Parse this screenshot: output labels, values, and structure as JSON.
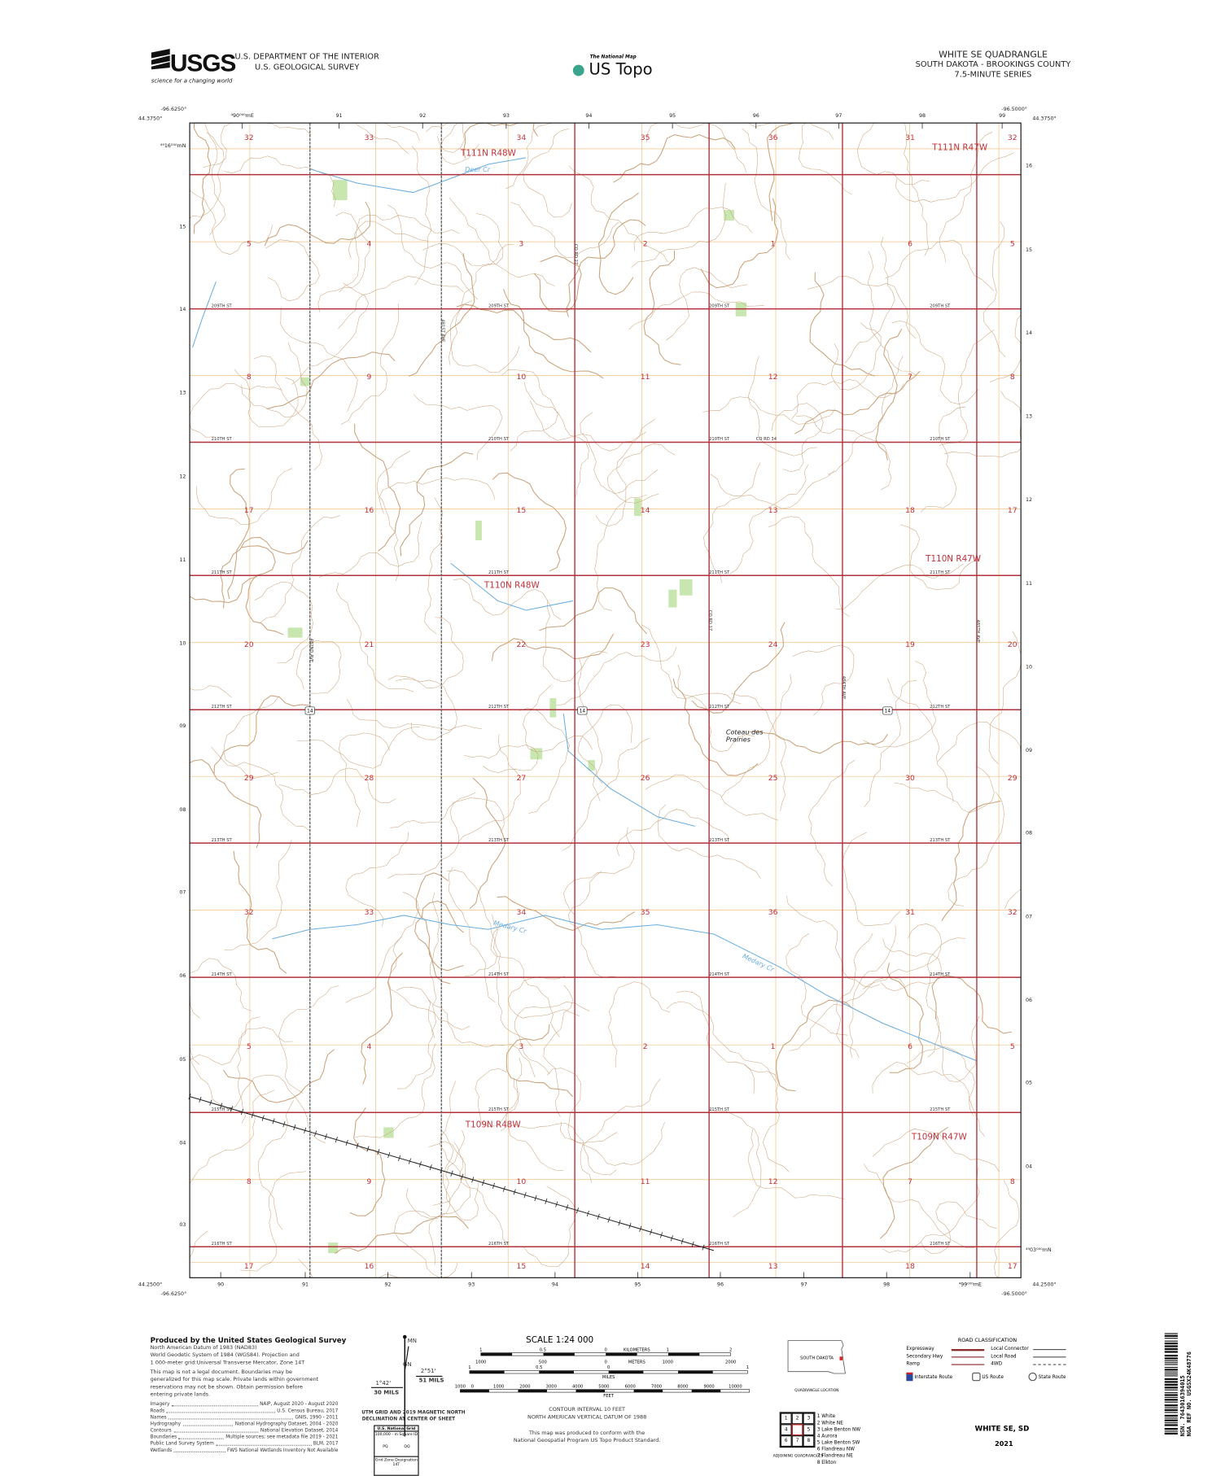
{
  "header": {
    "agency_logo": "USGS",
    "agency_tagline": "science for a changing world",
    "department": "U.S. DEPARTMENT OF THE INTERIOR",
    "survey": "U.S. GEOLOGICAL SURVEY",
    "national_map": "The National Map",
    "product": "US Topo",
    "quad_title": "WHITE SE QUADRANGLE",
    "state_county": "SOUTH DAKOTA - BROOKINGS COUNTY",
    "series": "7.5-MINUTE SERIES"
  },
  "collar": {
    "nw_lon": "-96.6250°",
    "nw_lat": "44.3750°",
    "ne_lon": "-96.5000°",
    "ne_lat": "44.3750°",
    "sw_lon": "-96.6250°",
    "sw_lat": "44.2500°",
    "se_lon": "-96.5000°",
    "se_lat": "44.2500°",
    "top_eastings": [
      "⁴90⁰⁰⁰mE",
      "91",
      "92",
      "93",
      "94",
      "95",
      "96",
      "97",
      "98",
      "99"
    ],
    "bottom_eastings": [
      "90",
      "91",
      "92",
      "93",
      "94",
      "95",
      "96",
      "97",
      "98",
      "⁴99⁰⁰⁰mE"
    ],
    "left_northings": [
      "⁴⁹16⁰⁰⁰mN",
      "15",
      "14",
      "13",
      "12",
      "11",
      "10",
      "09",
      "08",
      "07",
      "06",
      "05",
      "04",
      "03"
    ],
    "right_northings": [
      "16",
      "15",
      "14",
      "13",
      "12",
      "11",
      "10",
      "09",
      "08",
      "07",
      "06",
      "05",
      "04",
      "⁴⁹03⁰⁰⁰mN"
    ]
  },
  "map": {
    "colors": {
      "section_line": "#b0323a",
      "road": "#9a3a3a",
      "contour": "#c9a27a",
      "water": "#6aaee0",
      "grid": "#f0c080",
      "vegetation": "#c8e6b0"
    },
    "section_numbers": [
      [
        "32",
        "33",
        "34",
        "35",
        "36",
        "31",
        "32"
      ],
      [
        "5",
        "4",
        "3",
        "2",
        "1",
        "6",
        "5"
      ],
      [
        "8",
        "9",
        "10",
        "11",
        "12",
        "7",
        "8"
      ],
      [
        "17",
        "16",
        "15",
        "14",
        "13",
        "18",
        "17"
      ],
      [
        "20",
        "21",
        "22",
        "23",
        "24",
        "19",
        "20"
      ],
      [
        "29",
        "28",
        "27",
        "26",
        "25",
        "30",
        "29"
      ],
      [
        "32",
        "33",
        "34",
        "35",
        "36",
        "31",
        "32"
      ],
      [
        "5",
        "4",
        "3",
        "2",
        "1",
        "6",
        "5"
      ],
      [
        "8",
        "9",
        "10",
        "11",
        "12",
        "7",
        "8"
      ],
      [
        "17",
        "16",
        "15",
        "14",
        "13",
        "18",
        "17"
      ]
    ],
    "townships": [
      "T111N R48W",
      "T111N R47W",
      "T110N R48W",
      "T110N R47W",
      "T109N R48W",
      "T109N R47W"
    ],
    "streets": [
      "209TH ST",
      "210TH ST",
      "211TH ST",
      "212TH ST",
      "213TH ST",
      "214TH ST",
      "215TH ST",
      "216TH ST"
    ],
    "extra_roads": [
      "CO RD 34",
      "CO RD 27",
      "CO RD 17",
      "481ST AVE",
      "482ND AVE",
      "484TH AVE",
      "485TH AVE"
    ],
    "us_route": "14",
    "places": {
      "region": "Coteau des Prairies",
      "creek1": "Deer Cr",
      "creek2": "Medary Cr",
      "creek3": "Medary Cr"
    }
  },
  "footer": {
    "producer": "Produced by the United States Geological Survey",
    "datum_lines": [
      "North American Datum of 1983 (NAD83)",
      "World Geodetic System of 1984 (WGS84).  Projection and",
      "1 000-meter grid:Universal Transverse Mercator, Zone 14T"
    ],
    "legal_lines": [
      "This map is not a legal document. Boundaries may be",
      "generalized for this map scale. Private lands within government",
      "reservations may not be shown. Obtain permission before",
      "entering private lands."
    ],
    "sources": [
      [
        "Imagery",
        "NAIP, August 2020 - August 2020"
      ],
      [
        "Roads",
        "U.S. Census Bureau, 2017"
      ],
      [
        "Names",
        "GNIS, 1990 - 2011"
      ],
      [
        "Hydrography",
        "National Hydrography Dataset, 2004 - 2020"
      ],
      [
        "Contours",
        "National Elevation Dataset, 2014"
      ],
      [
        "Boundaries",
        "Multiple sources; see metadata file 2019 - 2021"
      ],
      [
        "Public Land Survey System",
        "BLM, 2017"
      ],
      [
        "Wetlands",
        "FWS National Wetlands Inventory Not Available"
      ]
    ],
    "declination": {
      "mn": "MN",
      "gn": "GN",
      "angle1": "2°51'",
      "mils1": "51 MILS",
      "angle2": "1°42'",
      "mils2": "30 MILS",
      "caption1": "UTM GRID AND 2019 MAGNETIC NORTH",
      "caption2": "DECLINATION AT CENTER OF SHEET"
    },
    "usng": {
      "title": "U.S. National Grid",
      "sq": "100,000 - m Square ID",
      "left": "PQ",
      "right": "QQ",
      "gzd_label": "Grid Zone Designation",
      "gzd": "14T"
    },
    "scale": {
      "title": "SCALE 1:24 000",
      "km_ticks": [
        "1",
        "0.5",
        "0",
        "1",
        "2"
      ],
      "km_label": "KILOMETERS",
      "m_ticks": [
        "1000",
        "500",
        "0",
        "1000",
        "2000"
      ],
      "m_label": "METERS",
      "mi_ticks": [
        "1",
        "0.5",
        "0",
        "1"
      ],
      "mi_label": "MILES",
      "ft_ticks": [
        "1000",
        "0",
        "1000",
        "2000",
        "3000",
        "4000",
        "5000",
        "6000",
        "7000",
        "8000",
        "9000",
        "10000"
      ],
      "ft_label": "FEET"
    },
    "contour_note": [
      "CONTOUR INTERVAL 10 FEET",
      "NORTH AMERICAN VERTICAL DATUM OF 1988"
    ],
    "standard_note": [
      "This map was produced to conform with the",
      "National Geospatial Program US Topo Product Standard."
    ],
    "quad_location": {
      "state": "SOUTH DAKOTA",
      "caption": "QUADRANGLE LOCATION"
    },
    "adjoining": {
      "cells": [
        "1",
        "2",
        "3",
        "4",
        "",
        "5",
        "6",
        "7",
        "8"
      ],
      "names": [
        "1 White",
        "2 White NE",
        "3 Lake Benton NW",
        "4 Aurora",
        "5 Lake Benton SW",
        "6 Flandreau NW",
        "7 Flandreau NE",
        "8 Elkton"
      ],
      "caption": "ADJOINING QUADRANGLES"
    },
    "road_classification": {
      "title": "ROAD CLASSIFICATION",
      "left": [
        "Expressway",
        "Secondary Hwy",
        "Ramp"
      ],
      "right": [
        "Local Connector",
        "Local Road",
        "4WD"
      ],
      "routes": [
        "Interstate Route",
        "US Route",
        "State Route"
      ]
    },
    "sheet_name": "WHITE SE,  SD",
    "year": "2021",
    "barcode": {
      "nsn_label": "NSN.",
      "nsn": "7643016394015",
      "nga_label": "NGA REF NO.",
      "nga": "USGSX24K48776"
    }
  }
}
